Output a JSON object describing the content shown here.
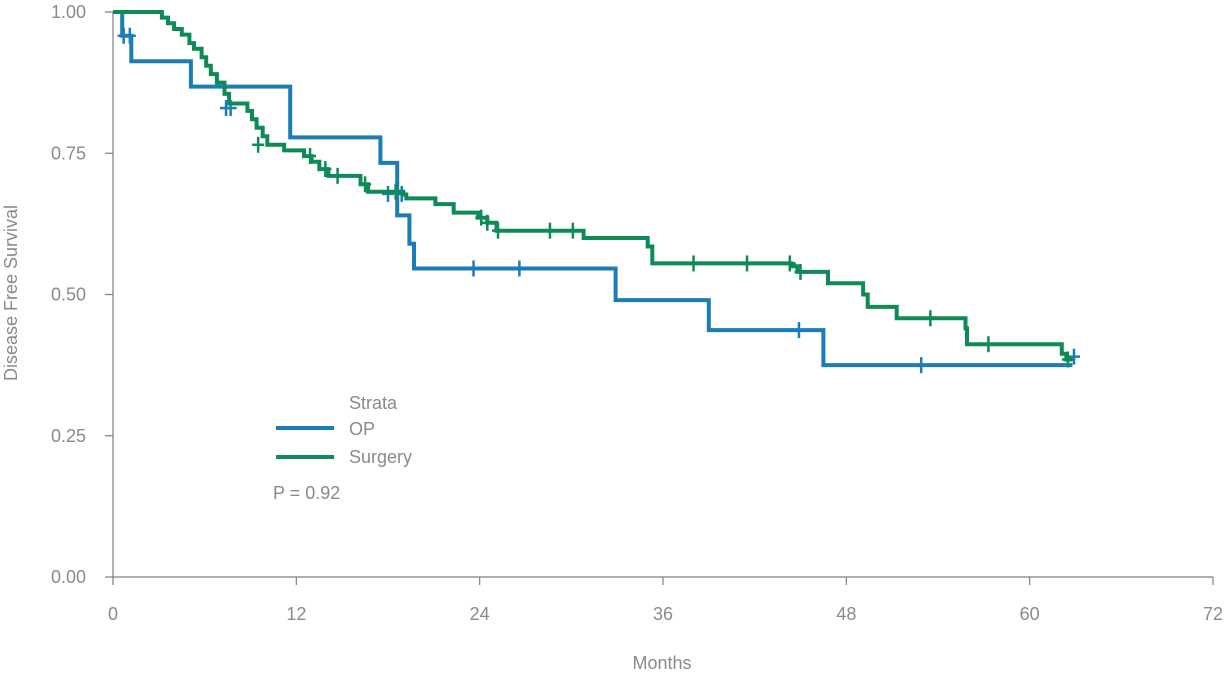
{
  "chart_data": {
    "type": "line",
    "xlabel": "Months",
    "ylabel": "Disease Free Survival",
    "xlim": [
      0,
      72
    ],
    "ylim": [
      0,
      1
    ],
    "xticks": [
      "0",
      "12",
      "24",
      "36",
      "48",
      "60",
      "72"
    ],
    "xtick_values": [
      0,
      12,
      24,
      36,
      48,
      60,
      72
    ],
    "yticks": [
      "0.00",
      "0.25",
      "0.50",
      "0.75",
      "1.00"
    ],
    "ytick_values": [
      0,
      0.25,
      0.5,
      0.75,
      1.0
    ],
    "grid": false,
    "legend": {
      "title": "Strata",
      "position": "center-left",
      "entries": [
        "OP",
        "Surgery"
      ]
    },
    "annotation": "P = 0.92",
    "series": [
      {
        "name": "OP",
        "color": "#1a7db8",
        "steps": [
          [
            0,
            1.0
          ],
          [
            0.6,
            0.958
          ],
          [
            1.2,
            0.913
          ],
          [
            5.1,
            0.868
          ],
          [
            11.6,
            0.778
          ],
          [
            17.5,
            0.733
          ],
          [
            18.6,
            0.64
          ],
          [
            19.4,
            0.59
          ],
          [
            19.7,
            0.546
          ],
          [
            32.9,
            0.49
          ],
          [
            39.0,
            0.437
          ],
          [
            46.5,
            0.375
          ],
          [
            62.8,
            0.375
          ]
        ],
        "censored": [
          [
            0.7,
            0.958
          ],
          [
            1.1,
            0.958
          ],
          [
            7.4,
            0.83
          ],
          [
            7.7,
            0.83
          ],
          [
            18.0,
            0.678
          ],
          [
            18.9,
            0.678
          ],
          [
            23.6,
            0.546
          ],
          [
            26.6,
            0.546
          ],
          [
            44.9,
            0.437
          ],
          [
            52.9,
            0.375
          ],
          [
            62.9,
            0.39
          ]
        ]
      },
      {
        "name": "Surgery",
        "color": "#0e8a57",
        "steps": [
          [
            0,
            1.0
          ],
          [
            3.2,
            0.99
          ],
          [
            3.6,
            0.98
          ],
          [
            4.0,
            0.97
          ],
          [
            4.5,
            0.96
          ],
          [
            5.0,
            0.945
          ],
          [
            5.3,
            0.935
          ],
          [
            5.8,
            0.92
          ],
          [
            6.1,
            0.905
          ],
          [
            6.4,
            0.89
          ],
          [
            6.8,
            0.875
          ],
          [
            7.3,
            0.855
          ],
          [
            7.6,
            0.838
          ],
          [
            8.8,
            0.825
          ],
          [
            9.1,
            0.81
          ],
          [
            9.4,
            0.795
          ],
          [
            9.8,
            0.78
          ],
          [
            10.1,
            0.765
          ],
          [
            11.2,
            0.755
          ],
          [
            12.5,
            0.745
          ],
          [
            13.0,
            0.735
          ],
          [
            13.5,
            0.722
          ],
          [
            14.1,
            0.71
          ],
          [
            16.2,
            0.695
          ],
          [
            16.7,
            0.682
          ],
          [
            19.0,
            0.677
          ],
          [
            19.2,
            0.67
          ],
          [
            21.1,
            0.66
          ],
          [
            22.0,
            0.66
          ],
          [
            22.3,
            0.645
          ],
          [
            23.9,
            0.636
          ],
          [
            24.5,
            0.627
          ],
          [
            25.1,
            0.613
          ],
          [
            30.8,
            0.6
          ],
          [
            35.0,
            0.585
          ],
          [
            35.3,
            0.555
          ],
          [
            44.4,
            0.55
          ],
          [
            44.8,
            0.54
          ],
          [
            46.8,
            0.52
          ],
          [
            49.1,
            0.5
          ],
          [
            49.4,
            0.478
          ],
          [
            51.3,
            0.458
          ],
          [
            55.8,
            0.44
          ],
          [
            55.9,
            0.412
          ],
          [
            62.1,
            0.395
          ],
          [
            62.4,
            0.385
          ],
          [
            62.8,
            0.385
          ]
        ],
        "censored": [
          [
            9.5,
            0.765
          ],
          [
            12.9,
            0.745
          ],
          [
            13.9,
            0.722
          ],
          [
            14.7,
            0.71
          ],
          [
            16.5,
            0.695
          ],
          [
            18.5,
            0.682
          ],
          [
            24.1,
            0.636
          ],
          [
            24.5,
            0.627
          ],
          [
            25.2,
            0.613
          ],
          [
            28.6,
            0.613
          ],
          [
            30.1,
            0.613
          ],
          [
            38.0,
            0.555
          ],
          [
            41.5,
            0.555
          ],
          [
            44.3,
            0.555
          ],
          [
            45.0,
            0.54
          ],
          [
            53.5,
            0.458
          ],
          [
            57.3,
            0.412
          ],
          [
            62.5,
            0.385
          ]
        ]
      }
    ]
  }
}
